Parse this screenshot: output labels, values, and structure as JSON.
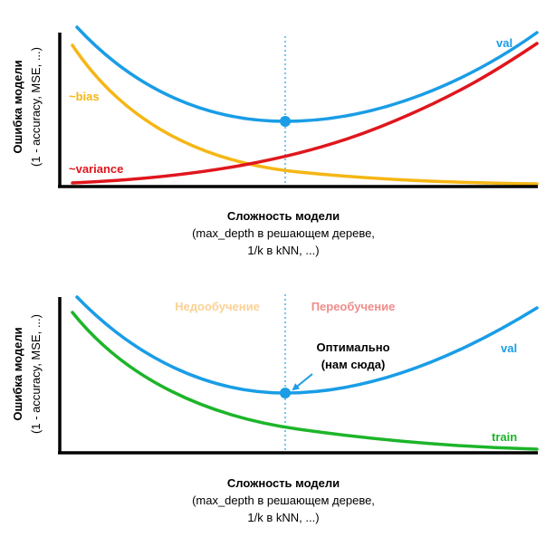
{
  "colors": {
    "val": "#1a9de6",
    "bias": "#f5b615",
    "variance": "#e0161d",
    "train": "#1db52a",
    "underfit": "#fbd194",
    "overfit": "#f08c8a",
    "axis": "#000000"
  },
  "top_panel": {
    "y_label_main": "Ошибка модели",
    "y_label_sub": "(1 - accuracy, MSE, ...)",
    "x_label_main": "Сложность модели",
    "x_label_line2": "(max_depth в решающем дереве,",
    "x_label_line3": "1/k в kNN, ...)",
    "val_label": "val",
    "bias_label": "~bias",
    "variance_label": "~variance"
  },
  "bottom_panel": {
    "y_label_main": "Ошибка модели",
    "y_label_sub": "(1 - accuracy, MSE, ...)",
    "x_label_main": "Сложность модели",
    "x_label_line2": "(max_depth в решающем дереве,",
    "x_label_line3": "1/k в kNN, ...)",
    "underfit_label": "Недообучение",
    "overfit_label": "Переобучение",
    "optimal_line1": "Оптимально",
    "optimal_line2": "(нам сюда)",
    "val_label": "val",
    "train_label": "train"
  }
}
